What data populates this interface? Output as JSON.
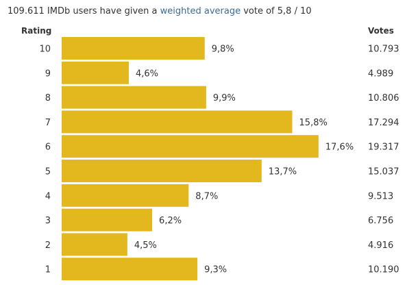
{
  "summary": {
    "before": "109.611 IMDb users have given a ",
    "link": "weighted average",
    "after": " vote of 5,8 / 10"
  },
  "headers": {
    "rating": "Rating",
    "votes": "Votes"
  },
  "colors": {
    "bar": "#e3b81f",
    "link": "#3a6b96"
  },
  "chart_data": {
    "type": "bar",
    "orientation": "horizontal",
    "categories": [
      "10",
      "9",
      "8",
      "7",
      "6",
      "5",
      "4",
      "3",
      "2",
      "1"
    ],
    "values": [
      9.8,
      4.6,
      9.9,
      15.8,
      17.6,
      13.7,
      8.7,
      6.2,
      4.5,
      9.3
    ],
    "value_labels": [
      "9,8%",
      "4,6%",
      "9,9%",
      "15,8%",
      "17,6%",
      "13,7%",
      "8,7%",
      "6,2%",
      "4,5%",
      "9,3%"
    ],
    "votes": [
      "10.793",
      "4.989",
      "10.806",
      "17.294",
      "19.317",
      "15.037",
      "9.513",
      "6.756",
      "4.916",
      "10.190"
    ]
  }
}
